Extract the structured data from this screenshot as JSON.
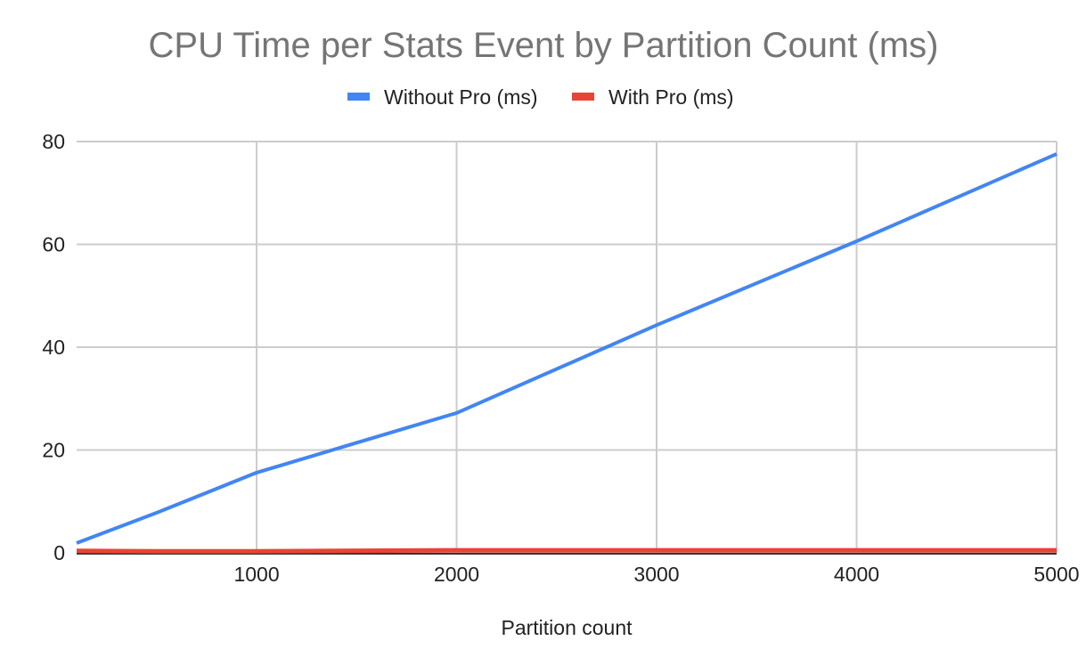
{
  "chart_data": {
    "type": "line",
    "title": "CPU Time per Stats Event by Partition Count (ms)",
    "xlabel": "Partition count",
    "ylabel": "",
    "xlim": [
      100,
      5000
    ],
    "ylim": [
      0,
      80
    ],
    "xticks": [
      1000,
      2000,
      3000,
      4000,
      5000
    ],
    "yticks": [
      0,
      20,
      40,
      60,
      80
    ],
    "grid": true,
    "legend_position": "top",
    "x": [
      100,
      500,
      1000,
      2000,
      3000,
      4000,
      5000
    ],
    "series": [
      {
        "name": "Without Pro (ms)",
        "color": "#4285f4",
        "values": [
          1.9,
          7.8,
          15.6,
          27.2,
          44.3,
          60.6,
          77.6
        ]
      },
      {
        "name": "With Pro (ms)",
        "color": "#ea4335",
        "values": [
          0.4,
          0.3,
          0.3,
          0.5,
          0.5,
          0.5,
          0.5
        ]
      }
    ]
  }
}
